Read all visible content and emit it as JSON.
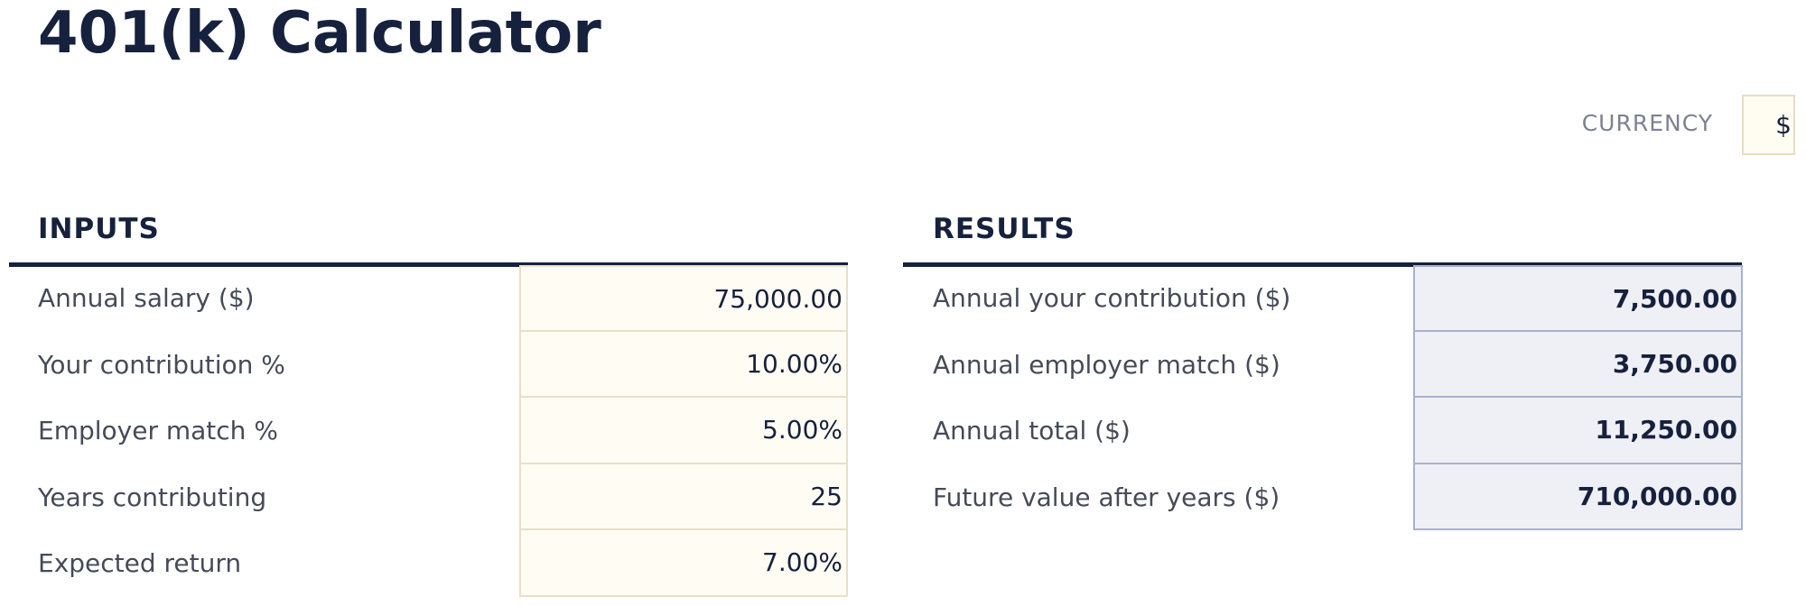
{
  "header": {
    "title": "401(k) Calculator"
  },
  "currency": {
    "label": "CURRENCY",
    "value": "$"
  },
  "inputs": {
    "title": "INPUTS",
    "rows": [
      {
        "label": "Annual salary ($)",
        "value": "75,000.00"
      },
      {
        "label": "Your contribution %",
        "value": "10.00%"
      },
      {
        "label": "Employer match %",
        "value": "5.00%"
      },
      {
        "label": "Years contributing",
        "value": "25"
      },
      {
        "label": "Expected return",
        "value": "7.00%"
      }
    ]
  },
  "results": {
    "title": "RESULTS",
    "rows": [
      {
        "label": "Annual your contribution ($)",
        "value": "7,500.00"
      },
      {
        "label": "Annual employer match ($)",
        "value": "3,750.00"
      },
      {
        "label": "Annual total ($)",
        "value": "11,250.00"
      },
      {
        "label": "Future value after years ($)",
        "value": "710,000.00"
      }
    ]
  }
}
